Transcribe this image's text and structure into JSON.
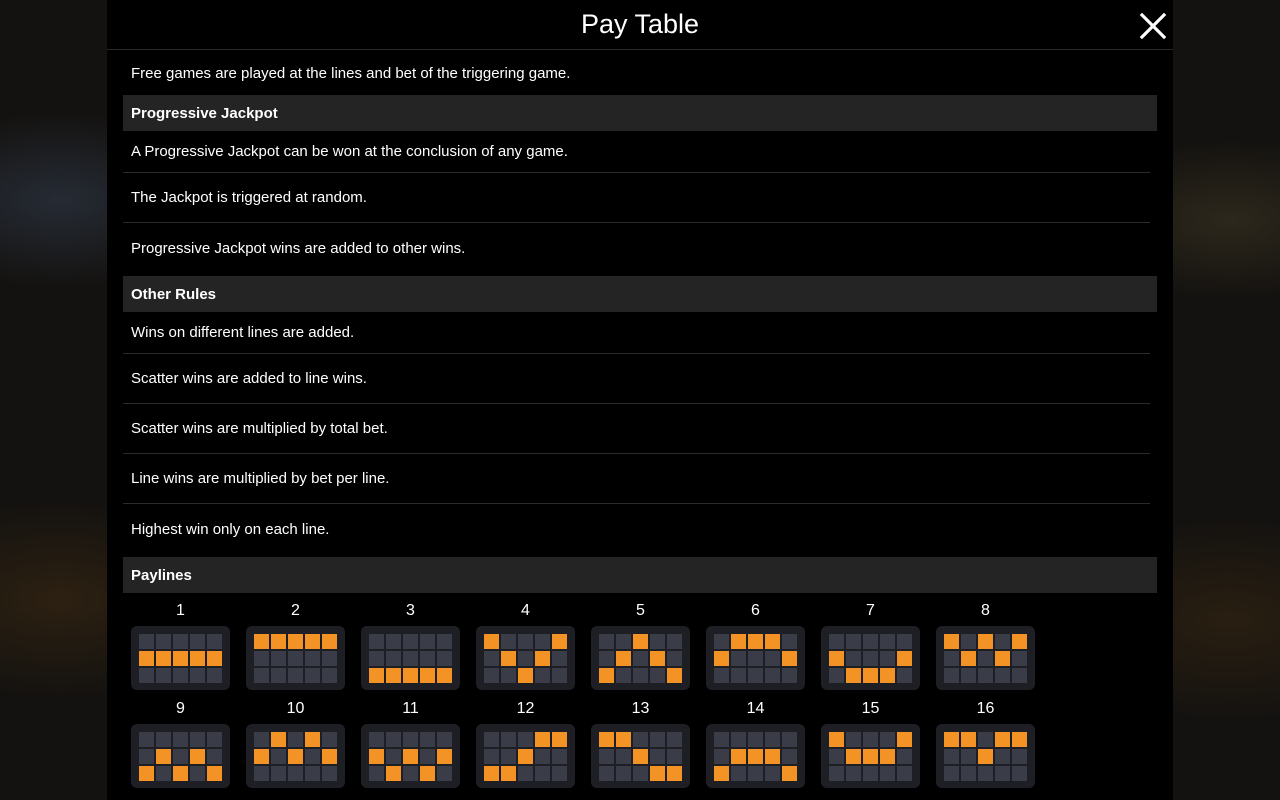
{
  "header": {
    "title": "Pay Table"
  },
  "colors": {
    "accent": "#f39325",
    "cell_off": "#3a3d48",
    "section_bg": "#242424"
  },
  "content": {
    "intro": "Free games are played at the lines and bet of the triggering game.",
    "progressive": {
      "heading": "Progressive Jackpot",
      "rows": [
        "A Progressive Jackpot can be won at the conclusion of any game.",
        "The Jackpot is triggered at random.",
        "Progressive Jackpot wins are added to other wins."
      ]
    },
    "other": {
      "heading": "Other Rules",
      "rows": [
        "Wins on different lines are added.",
        "Scatter wins are added to line wins.",
        "Scatter wins are multiplied by total bet.",
        "Line wins are multiplied by bet per line.",
        "Highest win only on each line."
      ]
    },
    "paylines_heading": "Paylines"
  },
  "paylines": [
    {
      "num": "1",
      "rows": [
        1,
        1,
        1,
        1,
        1
      ]
    },
    {
      "num": "2",
      "rows": [
        0,
        0,
        0,
        0,
        0
      ]
    },
    {
      "num": "3",
      "rows": [
        2,
        2,
        2,
        2,
        2
      ]
    },
    {
      "num": "4",
      "rows": [
        0,
        1,
        2,
        1,
        0
      ]
    },
    {
      "num": "5",
      "rows": [
        2,
        1,
        0,
        1,
        2
      ]
    },
    {
      "num": "6",
      "rows": [
        1,
        0,
        0,
        0,
        1
      ]
    },
    {
      "num": "7",
      "rows": [
        1,
        2,
        2,
        2,
        1
      ]
    },
    {
      "num": "8",
      "rows": [
        0,
        1,
        0,
        1,
        0
      ]
    },
    {
      "num": "9",
      "rows": [
        2,
        1,
        2,
        1,
        2
      ]
    },
    {
      "num": "10",
      "rows": [
        1,
        0,
        1,
        0,
        1
      ]
    },
    {
      "num": "11",
      "rows": [
        1,
        2,
        1,
        2,
        1
      ]
    },
    {
      "num": "12",
      "rows": [
        2,
        2,
        1,
        0,
        0
      ]
    },
    {
      "num": "13",
      "rows": [
        0,
        0,
        1,
        2,
        2
      ]
    },
    {
      "num": "14",
      "rows": [
        2,
        1,
        1,
        1,
        2
      ]
    },
    {
      "num": "15",
      "rows": [
        0,
        1,
        1,
        1,
        0
      ]
    },
    {
      "num": "16",
      "rows": [
        0,
        0,
        1,
        0,
        0
      ]
    }
  ]
}
